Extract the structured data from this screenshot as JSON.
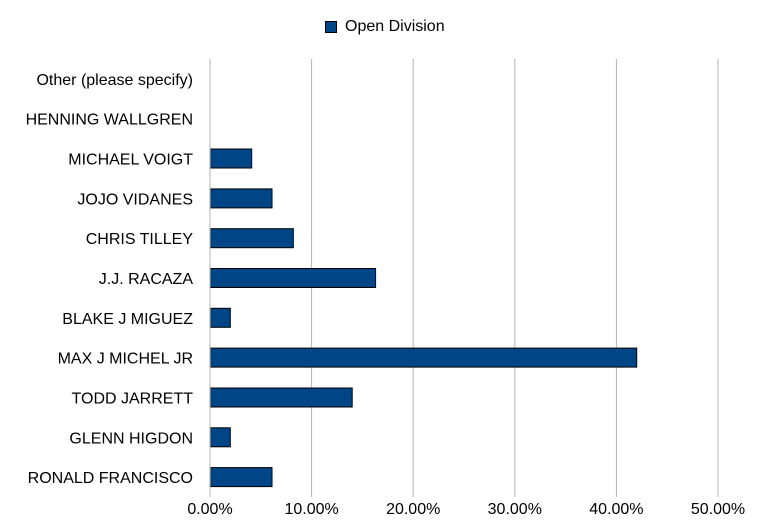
{
  "chart_data": {
    "type": "bar",
    "orientation": "horizontal",
    "categories": [
      "Other (please specify)",
      "HENNING WALLGREN",
      "MICHAEL VOIGT",
      "JOJO VIDANES",
      "CHRIS TILLEY",
      "J.J. RACAZA",
      "BLAKE J MIGUEZ",
      "MAX J MICHEL JR",
      "TODD JARRETT",
      "GLENN HIGDON",
      "RONALD FRANCISCO"
    ],
    "series": [
      {
        "name": "Open Division",
        "color": "#004586",
        "values": [
          0,
          0,
          4.1,
          6.1,
          8.2,
          16.3,
          2.0,
          42.0,
          14.0,
          2.0,
          6.1
        ]
      }
    ],
    "xlim": [
      0,
      50
    ],
    "x_ticks": [
      0,
      10,
      20,
      30,
      40,
      50
    ],
    "x_tick_labels": [
      "0.00%",
      "10.00%",
      "20.00%",
      "30.00%",
      "40.00%",
      "50.00%"
    ],
    "grid": "vertical",
    "legend_position": "top-center"
  }
}
